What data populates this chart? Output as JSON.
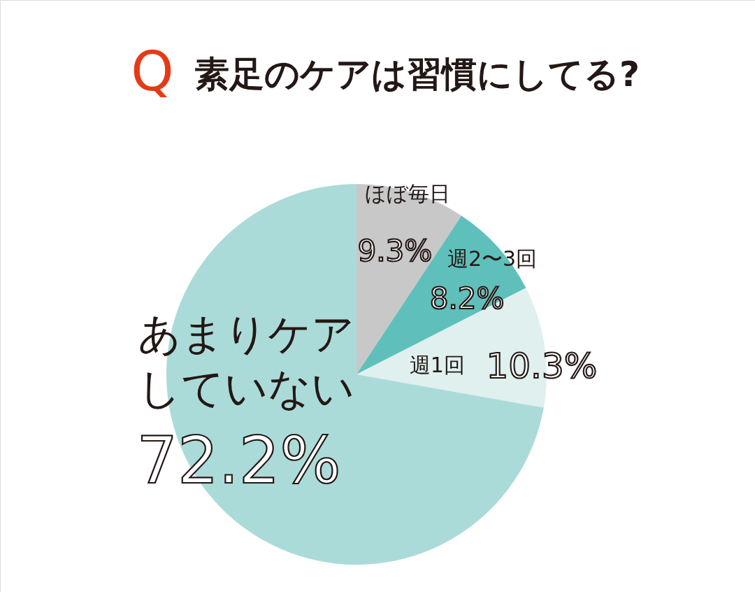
{
  "chart_data": {
    "type": "pie",
    "title": "素足のケアは習慣にしてる?",
    "annotations": [
      "Q"
    ],
    "categories": [
      "ほぼ毎日",
      "週2〜3回",
      "週1回",
      "あまりケアしていない"
    ],
    "values": [
      9.3,
      8.2,
      10.3,
      72.2
    ],
    "colors": [
      "#c8c8c8",
      "#5fc0bb",
      "#dff0ef",
      "#abdbd8"
    ],
    "value_labels": [
      "9.3%",
      "8.2%",
      "10.3%",
      "72.2%"
    ]
  }
}
